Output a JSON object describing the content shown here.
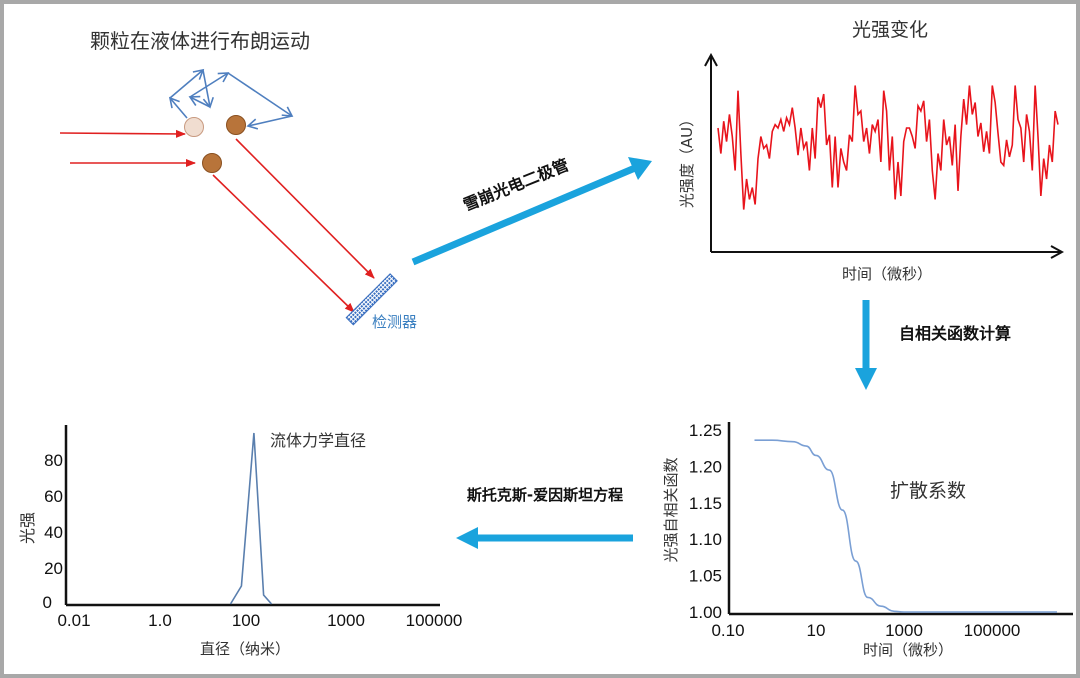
{
  "brownian": {
    "title": "颗粒在液体进行布朗运动",
    "detector_label": "检测器",
    "colors": {
      "laser": "#e02020",
      "motion": "#4f7fbf",
      "particle": "#b8743a",
      "particle_light": "#f0ddd0",
      "detector": "#3a6fc0"
    }
  },
  "arrows": {
    "apd_label": "雪崩光电二极管",
    "autocorr_label": "自相关函数计算",
    "stokes_label": "斯托克斯-爱因斯坦方程",
    "color": "#1aa3dd"
  },
  "chart_data": [
    {
      "type": "line",
      "title": "光强变化",
      "xlabel": "时间（微秒）",
      "ylabel": "光强度（AU）",
      "color": "#e8141c",
      "values": [
        0.6,
        0.45,
        0.64,
        0.52,
        0.68,
        0.55,
        0.35,
        0.82,
        0.45,
        0.12,
        0.3,
        0.18,
        0.25,
        0.15,
        0.42,
        0.55,
        0.48,
        0.5,
        0.42,
        0.58,
        0.62,
        0.6,
        0.65,
        0.58,
        0.66,
        0.62,
        0.72,
        0.6,
        0.44,
        0.6,
        0.48,
        0.52,
        0.35,
        0.6,
        0.42,
        0.78,
        0.72,
        0.8,
        0.5,
        0.56,
        0.25,
        0.55,
        0.25,
        0.48,
        0.4,
        0.35,
        0.56,
        0.52,
        0.85,
        0.68,
        0.7,
        0.52,
        0.6,
        0.45,
        0.62,
        0.58,
        0.65,
        0.4,
        0.82,
        0.7,
        0.35,
        0.55,
        0.18,
        0.4,
        0.2,
        0.52,
        0.6,
        0.6,
        0.55,
        0.48,
        0.73,
        0.7,
        0.76,
        0.52,
        0.65,
        0.35,
        0.18,
        0.45,
        0.35,
        0.65,
        0.5,
        0.55,
        0.38,
        0.62,
        0.23,
        0.55,
        0.77,
        0.62,
        0.85,
        0.68,
        0.75,
        0.55,
        0.63,
        0.46,
        0.58,
        0.45,
        0.85,
        0.75,
        0.57,
        0.4,
        0.38,
        0.53,
        0.43,
        0.5,
        0.85,
        0.65,
        0.6,
        0.4,
        0.68,
        0.58,
        0.35,
        0.85,
        0.55,
        0.2,
        0.42,
        0.3,
        0.5,
        0.4,
        0.7,
        0.62
      ],
      "grid": false
    },
    {
      "type": "line",
      "xlabel": "时间（微秒）",
      "ylabel": "光强自相关函数",
      "annotation": "扩散系数",
      "x_scale": "log",
      "x_ticks": [
        "0.10",
        "10",
        "1000",
        "100000"
      ],
      "y_ticks": [
        "1.25",
        "1.20",
        "1.15",
        "1.10",
        "1.05",
        "1.00"
      ],
      "ylim": [
        1.0,
        1.25
      ],
      "color": "#7a9fd4",
      "x": [
        0.4,
        1,
        3,
        6,
        10,
        20,
        40,
        80,
        150,
        300,
        600,
        1000,
        10000,
        100000,
        3000000
      ],
      "y": [
        1.236,
        1.236,
        1.234,
        1.228,
        1.215,
        1.195,
        1.14,
        1.07,
        1.02,
        1.008,
        1.001,
        1.0,
        1.0,
        1.0,
        1.0
      ],
      "grid": false
    },
    {
      "type": "line",
      "xlabel": "直径（纳米）",
      "ylabel": "光强",
      "annotation": "流体力学直径",
      "x_ticks": [
        "0.01",
        "1.0",
        "100",
        "1000",
        "100000"
      ],
      "y_ticks": [
        "80",
        "60",
        "40",
        "20",
        "0"
      ],
      "ylim": [
        0,
        95
      ],
      "color": "#5a7fae",
      "x": [
        70,
        90,
        120,
        150,
        180
      ],
      "y": [
        0,
        10,
        95,
        5,
        0
      ],
      "grid": false
    }
  ]
}
